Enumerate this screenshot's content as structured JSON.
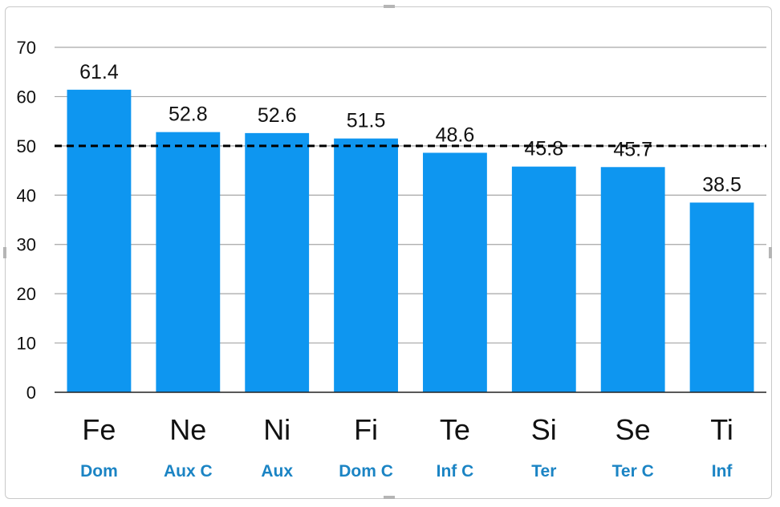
{
  "chart_data": {
    "type": "bar",
    "categories": [
      "Fe",
      "Ne",
      "Ni",
      "Fi",
      "Te",
      "Si",
      "Se",
      "Ti"
    ],
    "sublabels": [
      "Dom",
      "Aux C",
      "Aux",
      "Dom C",
      "Inf C",
      "Ter",
      "Ter C",
      "Inf"
    ],
    "values": [
      61.4,
      52.8,
      52.6,
      51.5,
      48.6,
      45.8,
      45.7,
      38.5
    ],
    "data_labels": [
      "61.4",
      "52.8",
      "52.6",
      "51.5",
      "48.6",
      "45.8",
      "45.7",
      "38.5"
    ],
    "ylim": [
      0,
      70
    ],
    "yticks": [
      0,
      10,
      20,
      30,
      40,
      50,
      60,
      70
    ],
    "reference_line": 50,
    "grid": true,
    "colors": {
      "bar": "#0e96f0",
      "sublabel": "#1b84c4",
      "grid": "#a6a6a6",
      "reference": "#000000"
    }
  }
}
